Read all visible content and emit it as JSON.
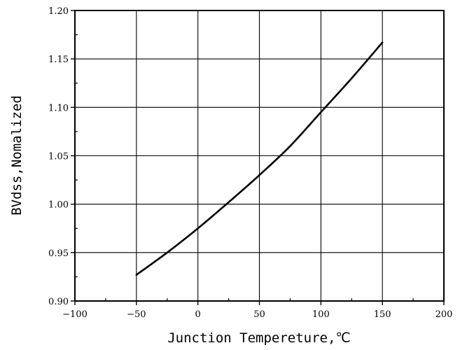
{
  "chart_data": {
    "type": "line",
    "title": "",
    "xlabel": "Junction Tempereture,℃",
    "ylabel": "BVdss,Nomalized",
    "xlim": [
      -100,
      200
    ],
    "ylim": [
      0.9,
      1.2
    ],
    "x_ticks": [
      -100,
      -50,
      0,
      50,
      100,
      150,
      200
    ],
    "x_tick_labels": [
      "−100",
      "−50",
      "0",
      "50",
      "100",
      "150",
      "200"
    ],
    "y_ticks": [
      0.9,
      0.95,
      1.0,
      1.05,
      1.1,
      1.15,
      1.2
    ],
    "y_tick_labels": [
      "0.90",
      "0.95",
      "1.00",
      "1.05",
      "1.10",
      "1.15",
      "1.20"
    ],
    "grid": true,
    "series": [
      {
        "x": [
          -50,
          -25,
          0,
          25,
          50,
          75,
          100,
          125,
          150
        ],
        "y": [
          0.927,
          0.95,
          0.975,
          1.002,
          1.03,
          1.06,
          1.095,
          1.13,
          1.167
        ]
      }
    ]
  }
}
